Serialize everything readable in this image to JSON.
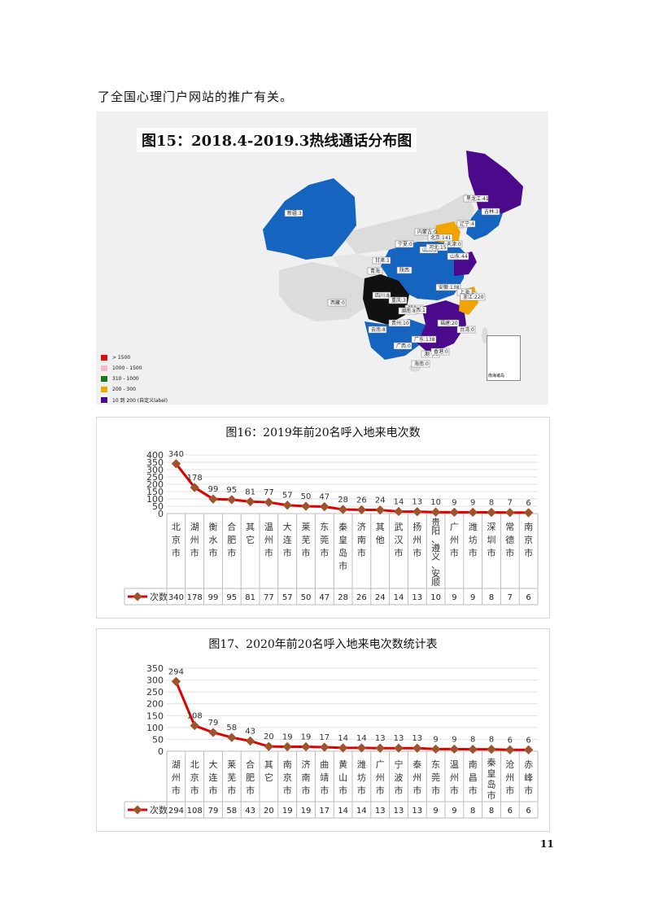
{
  "document": {
    "intro_text": "了全国心理门户网站的推广有关。",
    "page_number": "11"
  },
  "map": {
    "title": "图15：2018.4-2019.3热线通话分布图",
    "inset_label": "南海诸岛",
    "legend": [
      {
        "label": "> 1500",
        "color": "#e01010"
      },
      {
        "label": "1000 - 1500",
        "color": "#f4b8c8"
      },
      {
        "label": "310 - 1000",
        "color": "#1a7a1a"
      },
      {
        "label": "200 - 300",
        "color": "#f2a400"
      },
      {
        "label": "10 到 200 (自定义label)",
        "color": "#4b0a8c"
      }
    ],
    "region_labels": [
      "新疆:3",
      "黑龙江:41",
      "吉林:3",
      "辽宁:4",
      "内蒙古:0",
      "北京:141",
      "天津:0",
      "山西:1",
      "河北:15",
      "山东:44",
      "宁夏:0",
      "甘肃:1",
      "陕西:",
      "西藏:0",
      "青海:",
      "四川:8",
      "重庆:3",
      "安徽:138",
      "江苏:",
      "上海:",
      "湖北:2",
      "浙江:220",
      "江西:1",
      "湖南:8",
      "贵州:10",
      "云南:8",
      "福建:20",
      "台湾:0",
      "广东:138",
      "广西:0",
      "澳门:0",
      "香港:0",
      "海南:0"
    ]
  },
  "chart_2019": {
    "title": "图16：2019年前20名呼入地来电次数",
    "series_name": "次数",
    "line_color": "#e00000",
    "marker_color": "#a0522d",
    "chart_data": {
      "type": "line",
      "title": "图16：2019年前20名呼入地来电次数",
      "ylim": [
        0,
        400
      ],
      "yticks": [
        0,
        50,
        100,
        150,
        200,
        250,
        300,
        350,
        400
      ],
      "categories": [
        "北京市",
        "湖州市",
        "衡水市",
        "合肥市",
        "其它",
        "温州市",
        "大连市",
        "莱芜市",
        "东莞市",
        "秦皇岛市",
        "济南市",
        "其他",
        "武汉市",
        "扬州市",
        "贵阳、遵义、安顺",
        "广州市",
        "潍坊市",
        "深圳市",
        "常德市",
        "南京市"
      ],
      "series": [
        {
          "name": "次数",
          "values": [
            340,
            178,
            99,
            95,
            81,
            77,
            57,
            50,
            47,
            28,
            26,
            24,
            14,
            13,
            10,
            9,
            9,
            8,
            7,
            6
          ]
        }
      ],
      "grid": true,
      "legend": "bottom-left"
    }
  },
  "chart_2020": {
    "title": "图17、2020年前20名呼入地来电次数统计表",
    "series_name": "次数",
    "line_color": "#e00000",
    "marker_color": "#a0522d",
    "chart_data": {
      "type": "line",
      "title": "图17、2020年前20名呼入地来电次数统计表",
      "ylim": [
        0,
        350
      ],
      "yticks": [
        0,
        50,
        100,
        150,
        200,
        250,
        300,
        350
      ],
      "categories": [
        "湖州市",
        "北京市",
        "大连市",
        "莱芜市",
        "合肥市",
        "其它",
        "南京市",
        "济南市",
        "曲靖市",
        "黄山市",
        "潍坊市",
        "广州市",
        "宁波市",
        "泰州市",
        "东莞市",
        "温州市",
        "南昌市",
        "秦皇岛市",
        "沧州市",
        "赤峰市"
      ],
      "series": [
        {
          "name": "次数",
          "values": [
            294,
            108,
            79,
            58,
            43,
            20,
            19,
            19,
            17,
            14,
            14,
            13,
            13,
            13,
            9,
            9,
            8,
            8,
            6,
            6
          ]
        }
      ],
      "grid": true,
      "legend": "bottom-left"
    }
  }
}
